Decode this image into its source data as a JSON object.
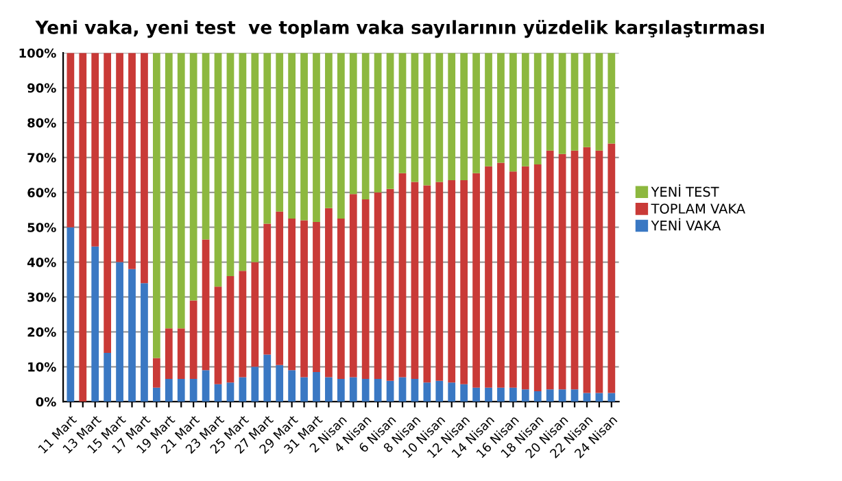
{
  "chart_data": {
    "type": "bar",
    "stacked": true,
    "title": "Yeni vaka, yeni test  ve toplam vaka sayılarının yüzdelik karşılaştırması",
    "categories": [
      "11 Mart",
      null,
      "13 Mart",
      null,
      "15 Mart",
      null,
      "17 Mart",
      null,
      "19 Mart",
      null,
      "21 Mart",
      null,
      "23 Mart",
      null,
      "25 Mart",
      null,
      "27 Mart",
      null,
      "29 Mart",
      null,
      "31 Mart",
      null,
      "2 Nisan",
      null,
      "4 Nisan",
      null,
      "6 Nisan",
      null,
      "8 Nisan",
      null,
      "10 Nisan",
      null,
      "12 Nisan",
      null,
      "14 Nisan",
      null,
      "16 Nisan",
      null,
      "18 Nisan",
      null,
      "20 Nisan",
      null,
      "22 Nisan",
      null,
      "24 Nisan"
    ],
    "series": [
      {
        "name": "YENİ VAKA",
        "color": "#3a78c3",
        "values": [
          50,
          0,
          44.5,
          14,
          40,
          38,
          34,
          4,
          6.5,
          6.5,
          6.5,
          9,
          5,
          5.5,
          7,
          10,
          13.5,
          10.5,
          9,
          7,
          8.5,
          7,
          6.5,
          7,
          6.5,
          6.5,
          6,
          7,
          6.5,
          5.5,
          6,
          5.5,
          5,
          4,
          4,
          4,
          4,
          3.5,
          3,
          3.5,
          3.5,
          3.5,
          2.5,
          2.5,
          2.5
        ]
      },
      {
        "name": "TOPLAM VAKA",
        "color": "#c93a37",
        "values": [
          50,
          100,
          55.5,
          86,
          60,
          62,
          66,
          8.5,
          14.5,
          14.5,
          22.5,
          37.5,
          28,
          30.5,
          30.5,
          30,
          37.5,
          44,
          43.5,
          45,
          43,
          48.5,
          46,
          52.5,
          51.5,
          53.5,
          55,
          58.5,
          56.5,
          56.5,
          57,
          58,
          58.5,
          61.5,
          63.5,
          64.5,
          62,
          64,
          65,
          68.5,
          67.5,
          68.5,
          70.5,
          69.5,
          71.5
        ]
      },
      {
        "name": "YENİ TEST",
        "color": "#8db83f",
        "values": [
          0,
          0,
          0,
          0,
          0,
          0,
          0,
          87.5,
          79,
          79,
          71,
          53.5,
          67,
          64,
          62.5,
          60,
          49,
          45.5,
          47.5,
          48,
          48.5,
          44.5,
          47.5,
          40.5,
          42,
          40,
          39,
          34.5,
          37,
          38,
          37,
          36.5,
          36.5,
          34.5,
          32.5,
          31.5,
          34,
          32.5,
          32,
          28,
          29,
          28,
          27,
          28,
          26
        ]
      }
    ],
    "ylim": [
      0,
      100
    ],
    "yticks": [
      {
        "value": 0,
        "label": "0%"
      },
      {
        "value": 10,
        "label": "10%"
      },
      {
        "value": 20,
        "label": "20%"
      },
      {
        "value": 30,
        "label": "30%"
      },
      {
        "value": 40,
        "label": "40%"
      },
      {
        "value": 50,
        "label": "50%"
      },
      {
        "value": 60,
        "label": "60%"
      },
      {
        "value": 70,
        "label": "70%"
      },
      {
        "value": 80,
        "label": "80%"
      },
      {
        "value": 90,
        "label": "90%"
      },
      {
        "value": 100,
        "label": "100%"
      }
    ],
    "grid": "y",
    "legend": "right"
  }
}
